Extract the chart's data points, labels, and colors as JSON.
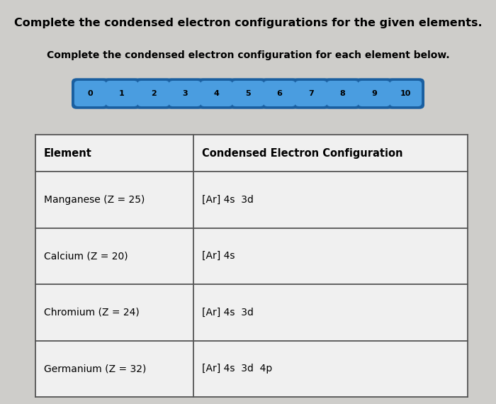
{
  "title": "Complete the condensed electron configurations for the given elements.",
  "subtitle": "Complete the condensed electron configuration for each element below.",
  "background_color": "#cecdca",
  "button_numbers": [
    0,
    1,
    2,
    3,
    4,
    5,
    6,
    7,
    8,
    9,
    10
  ],
  "button_border_color": "#1a5fa0",
  "button_fill_color": "#4a9de0",
  "button_text_color": "#000000",
  "table_headers": [
    "Element",
    "Condensed Electron Configuration"
  ],
  "table_rows": [
    [
      "Manganese (Z = 25)",
      "[Ar] 4s  3d"
    ],
    [
      "Calcium (Z = 20)",
      "[Ar] 4s"
    ],
    [
      "Chromium (Z = 24)",
      "[Ar] 4s  3d"
    ],
    [
      "Germanium (Z = 32)",
      "[Ar] 4s  3d  4p"
    ]
  ],
  "font_size_title": 11.5,
  "font_size_subtitle": 10,
  "font_size_button": 8,
  "font_size_table_header": 10.5,
  "font_size_table_row": 10
}
